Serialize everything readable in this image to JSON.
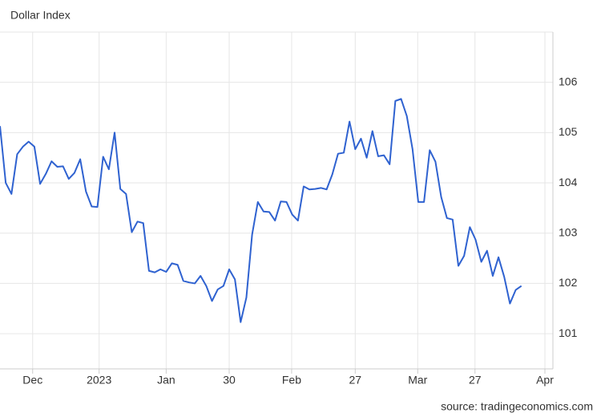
{
  "chart_data": {
    "type": "line",
    "title": "Dollar Index",
    "source": "source: tradingeconomics.com",
    "x": [
      0,
      1,
      2,
      3,
      4,
      5,
      6,
      7,
      8,
      9,
      10,
      11,
      12,
      13,
      14,
      15,
      16,
      17,
      18,
      19,
      20,
      21,
      22,
      23,
      24,
      25,
      26,
      27,
      28,
      29,
      30,
      31,
      32,
      33,
      34,
      35,
      36,
      37,
      38,
      39,
      40,
      41,
      42,
      43,
      44,
      45,
      46,
      47,
      48,
      49,
      50,
      51,
      52,
      53,
      54,
      55,
      56,
      57,
      58,
      59,
      60,
      61,
      62,
      63,
      64,
      65,
      66,
      67,
      68,
      69,
      70,
      71,
      72,
      73,
      74,
      75,
      76,
      77,
      78,
      79,
      80,
      81,
      82,
      83,
      84,
      85,
      86,
      87,
      88,
      89,
      90,
      91
    ],
    "series": [
      {
        "name": "Dollar Index",
        "color": "#2f62d0",
        "values": [
          105.13,
          104.0,
          103.78,
          104.57,
          104.72,
          104.82,
          104.72,
          103.98,
          104.18,
          104.43,
          104.32,
          104.33,
          104.08,
          104.2,
          104.47,
          103.83,
          103.53,
          103.52,
          104.52,
          104.27,
          105.0,
          103.88,
          103.78,
          103.02,
          103.23,
          103.2,
          102.25,
          102.22,
          102.28,
          102.23,
          102.4,
          102.37,
          102.05,
          102.02,
          102.0,
          102.15,
          101.95,
          101.65,
          101.88,
          101.95,
          102.28,
          102.08,
          101.23,
          101.72,
          102.97,
          103.62,
          103.43,
          103.42,
          103.25,
          103.63,
          103.62,
          103.37,
          103.25,
          103.93,
          103.87,
          103.88,
          103.9,
          103.87,
          104.17,
          104.58,
          104.6,
          105.22,
          104.67,
          104.88,
          104.5,
          105.03,
          104.53,
          104.55,
          104.37,
          105.63,
          105.67,
          105.33,
          104.67,
          103.62,
          103.62,
          104.65,
          104.42,
          103.72,
          103.3,
          103.27,
          102.35,
          102.55,
          103.12,
          102.87,
          102.43,
          102.65,
          102.15,
          102.52,
          102.13,
          101.6,
          101.87,
          101.95
        ]
      }
    ],
    "xlim": [
      0,
      96.5
    ],
    "xticks": [
      {
        "value": 5.7,
        "label": "Dec"
      },
      {
        "value": 17.3,
        "label": "2023"
      },
      {
        "value": 29,
        "label": "Jan"
      },
      {
        "value": 40,
        "label": "30"
      },
      {
        "value": 50.9,
        "label": "Feb"
      },
      {
        "value": 62,
        "label": "27"
      },
      {
        "value": 72.9,
        "label": "Mar"
      },
      {
        "value": 82.9,
        "label": "27"
      },
      {
        "value": 95.1,
        "label": "Apr"
      }
    ],
    "ylim": [
      100.3,
      107
    ],
    "yticks": [
      101,
      102,
      103,
      104,
      105,
      106
    ],
    "grid": true
  }
}
